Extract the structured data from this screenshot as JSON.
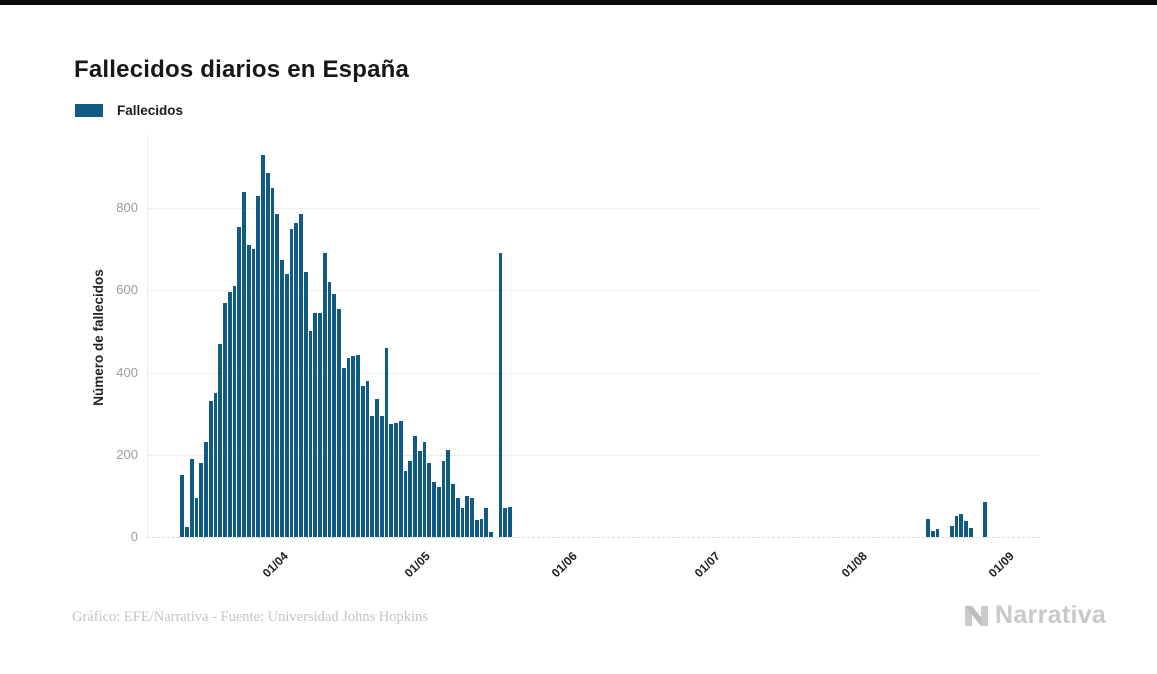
{
  "page": {
    "top_strip_color": "#0b0b0b"
  },
  "chart_data": {
    "type": "bar",
    "title": "Fallecidos diarios en España",
    "xlabel": "",
    "ylabel": "Número de fallecidos",
    "grid": "horizontal",
    "legend_position": "top-left",
    "x_unit": "day",
    "x_start_date": "09/03",
    "x_ticks": [
      {
        "label": "01/04",
        "index": 23
      },
      {
        "label": "01/05",
        "index": 53
      },
      {
        "label": "01/06",
        "index": 84
      },
      {
        "label": "01/07",
        "index": 114
      },
      {
        "label": "01/08",
        "index": 145
      },
      {
        "label": "01/09",
        "index": 176
      }
    ],
    "y_ticks": [
      0,
      200,
      400,
      600,
      800
    ],
    "ylim": [
      0,
      973
    ],
    "series": [
      {
        "name": "Fallecidos",
        "color": "#0f5b83",
        "values": [
          0,
          0,
          0,
          0,
          0,
          0,
          0,
          150,
          25,
          190,
          95,
          180,
          230,
          330,
          350,
          470,
          570,
          595,
          610,
          755,
          840,
          710,
          700,
          830,
          930,
          885,
          850,
          785,
          675,
          640,
          750,
          765,
          785,
          645,
          500,
          545,
          545,
          690,
          620,
          590,
          555,
          410,
          435,
          440,
          442,
          367,
          380,
          295,
          335,
          295,
          460,
          275,
          278,
          282,
          160,
          185,
          245,
          210,
          230,
          180,
          135,
          122,
          185,
          212,
          130,
          95,
          70,
          100,
          95,
          42,
          45,
          70,
          12,
          0,
          690,
          70,
          72,
          0,
          0,
          0,
          0,
          0,
          0,
          0,
          0,
          0,
          0,
          0,
          0,
          0,
          0,
          0,
          0,
          0,
          0,
          0,
          0,
          0,
          0,
          0,
          0,
          0,
          0,
          0,
          0,
          0,
          0,
          0,
          0,
          0,
          0,
          0,
          0,
          0,
          0,
          0,
          0,
          0,
          0,
          0,
          0,
          0,
          0,
          0,
          0,
          0,
          0,
          0,
          0,
          0,
          0,
          0,
          0,
          0,
          0,
          0,
          0,
          0,
          0,
          0,
          0,
          0,
          0,
          0,
          0,
          0,
          0,
          0,
          0,
          0,
          0,
          0,
          0,
          0,
          0,
          0,
          0,
          0,
          0,
          0,
          0,
          0,
          0,
          0,
          45,
          15,
          20,
          0,
          0,
          28,
          50,
          57,
          38,
          22,
          0,
          0,
          85,
          0,
          0,
          0,
          0,
          0,
          0,
          0,
          0,
          0,
          0,
          0
        ]
      }
    ]
  },
  "footer": {
    "credit": "Gráfico: EFE/Narrativa - Fuente: Universidad Johns Hopkins",
    "logo_text": "Narrativa"
  }
}
